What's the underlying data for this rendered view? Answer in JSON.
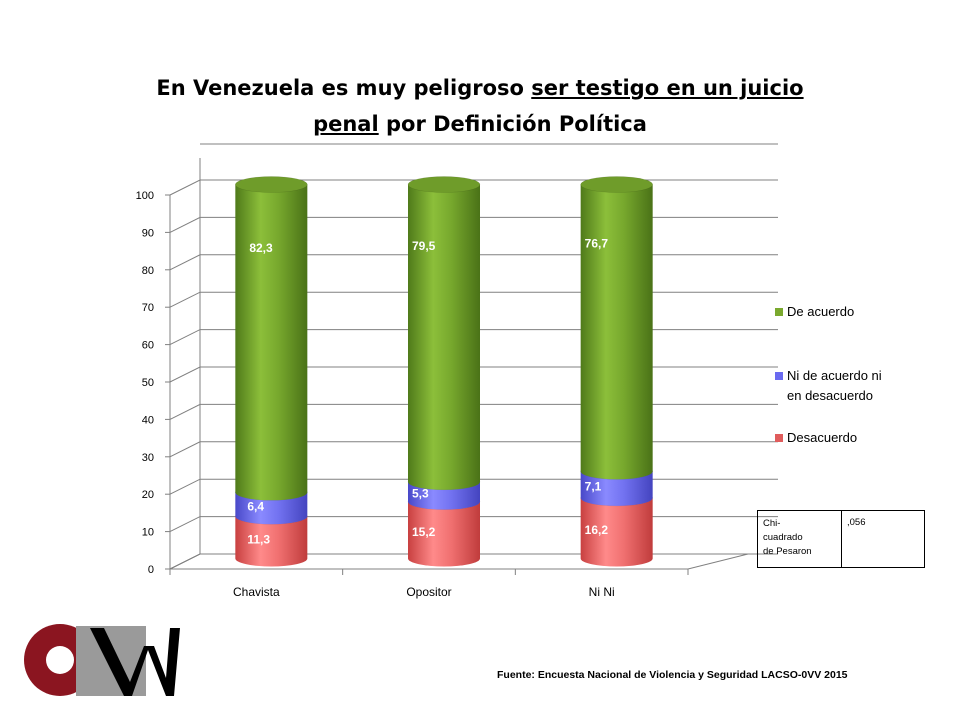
{
  "title": {
    "part1": "En Venezuela es muy peligroso",
    "underlined": "ser testigo en un juicio penal",
    "part2": "por Definición Política"
  },
  "chart_data": {
    "type": "bar",
    "stacked": true,
    "style": "3d-cylinder",
    "categories": [
      "Chavista",
      "Opositor",
      "Ni Ni"
    ],
    "series": [
      {
        "name": "Desacuerdo",
        "values": [
          11.3,
          15.2,
          16.2
        ],
        "labels": [
          "11,3",
          "15,2",
          "16,2"
        ],
        "color": "#e05c5c"
      },
      {
        "name": "Ni de acuerdo ni en desacuerdo",
        "values": [
          6.4,
          5.3,
          7.1
        ],
        "labels": [
          "6,4",
          "5,3",
          "7,1"
        ],
        "color": "#6a6af0"
      },
      {
        "name": "De acuerdo",
        "values": [
          82.3,
          79.5,
          76.7
        ],
        "labels": [
          "82,3",
          "79,5",
          "76,7"
        ],
        "color": "#6f9c2a"
      }
    ],
    "yticks": [
      "0",
      "10",
      "20",
      "30",
      "40",
      "50",
      "60",
      "70",
      "80",
      "90",
      "100"
    ],
    "ylim": [
      0,
      100
    ],
    "grid": true,
    "legend": {
      "position": "right",
      "entries": [
        {
          "lines": [
            "De acuerdo"
          ],
          "color": "#7aa92e"
        },
        {
          "lines": [
            "Ni de acuerdo ni",
            "en desacuerdo"
          ],
          "color": "#6a6af0"
        },
        {
          "lines": [
            "Desacuerdo"
          ],
          "color": "#e05c5c"
        }
      ]
    }
  },
  "stats_table": {
    "label_lines": [
      "Chi-",
      "cuadrado",
      "de Pesaron"
    ],
    "value": ",056"
  },
  "logo": {
    "letters": "OVV",
    "colors": {
      "dark_red": "#8b1520",
      "gray": "#9a9a9a",
      "black": "#000000"
    }
  },
  "source": "Fuente: Encuesta Nacional de Violencia y Seguridad LACSO-0VV 2015"
}
